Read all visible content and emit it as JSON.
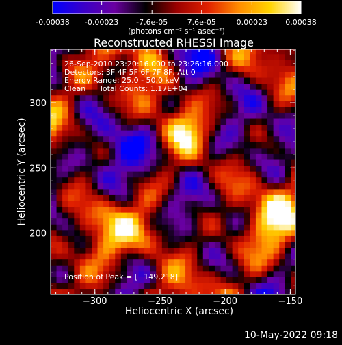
{
  "colorbar": {
    "tick_labels": [
      "-0.00038",
      "-0.00023",
      "-7.6e-05",
      "7.6e-05",
      "0.00023",
      "0.00038"
    ],
    "tick_values": [
      -0.00038,
      -0.00023,
      -7.6e-05,
      7.6e-05,
      0.00023,
      0.00038
    ],
    "range": [
      -0.00038,
      0.00038
    ],
    "units_label": "(photons cm⁻² s⁻¹ asec⁻²)",
    "colormap": [
      "#0000ff",
      "#3a00c8",
      "#6a00a0",
      "#000000",
      "#9b0000",
      "#e02000",
      "#ff8c00",
      "#ffd400",
      "#ffffff"
    ]
  },
  "chart_data": {
    "type": "heatmap",
    "title": "Reconstructed RHESSI Image",
    "xlabel": "Heliocentric X (arcsec)",
    "ylabel": "Heliocentric Y (arcsec)",
    "xlim": [
      -334,
      -146
    ],
    "ylim": [
      153,
      341
    ],
    "xticks": [
      -300,
      -250,
      -200,
      -150
    ],
    "xtick_labels": [
      "−300",
      "−250",
      "−200",
      "−150"
    ],
    "yticks": [
      200,
      250,
      300
    ],
    "ytick_labels": [
      "200",
      "250",
      "300"
    ],
    "grid": false,
    "peak": [
      -149,
      218
    ],
    "annotations": {
      "time_range": "26-Sep-2010 23:20:16.000 to 23:26:16.000",
      "detectors": "Detectors: 3F 4F 5F 6F 7F 8F, Att 0",
      "energy": "Energy Range: 25.0 - 50.0 keV",
      "clean_label": "Clean",
      "total_counts": "Total Counts: 1.17E+04",
      "peak_position": "Position of Peak = [−149,218]"
    }
  },
  "footer": {
    "date": "10-May-2022 09:18"
  }
}
